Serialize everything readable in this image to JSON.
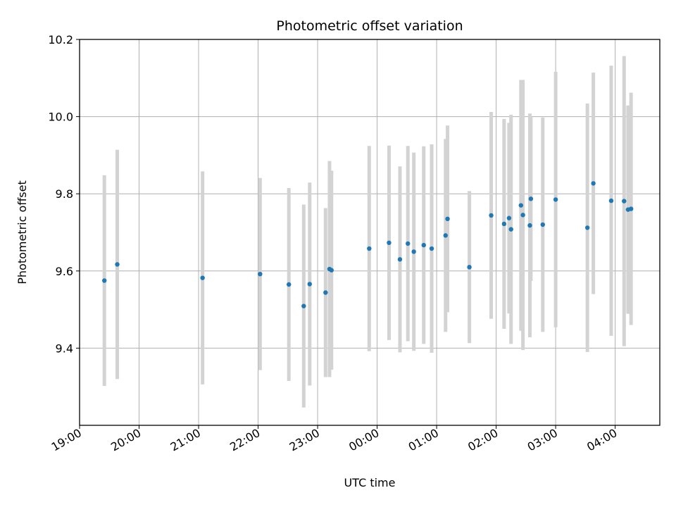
{
  "chart_data": {
    "type": "scatter",
    "title": "Photometric offset variation",
    "xlabel": "UTC time",
    "ylabel": "Photometric offset",
    "x_axis_kind": "time",
    "x_ticks": [
      "19:00",
      "20:00",
      "21:00",
      "22:00",
      "23:00",
      "00:00",
      "01:00",
      "02:00",
      "03:00",
      "04:00"
    ],
    "y_ticks": [
      "9.4",
      "9.6",
      "9.8",
      "10.0",
      "10.2"
    ],
    "x_range": [
      "19:00",
      "04:45"
    ],
    "ylim": [
      9.2,
      10.2
    ],
    "grid": true,
    "marker_color": "#1f77b4",
    "errorbar_color": "#d3d3d3",
    "series": [
      {
        "points": [
          {
            "x": "19:25",
            "y": 9.575,
            "yerr": 0.273
          },
          {
            "x": "19:38",
            "y": 9.617,
            "yerr": 0.297
          },
          {
            "x": "21:04",
            "y": 9.582,
            "yerr": 0.276
          },
          {
            "x": "22:02",
            "y": 9.592,
            "yerr": 0.249
          },
          {
            "x": "22:31",
            "y": 9.565,
            "yerr": 0.25
          },
          {
            "x": "22:46",
            "y": 9.509,
            "yerr": 0.263
          },
          {
            "x": "22:52",
            "y": 9.566,
            "yerr": 0.263
          },
          {
            "x": "23:08",
            "y": 9.544,
            "yerr": 0.219
          },
          {
            "x": "23:12",
            "y": 9.605,
            "yerr": 0.28
          },
          {
            "x": "23:14",
            "y": 9.602,
            "yerr": 0.258
          },
          {
            "x": "23:52",
            "y": 9.658,
            "yerr": 0.266
          },
          {
            "x": "00:12",
            "y": 9.673,
            "yerr": 0.252
          },
          {
            "x": "00:23",
            "y": 9.63,
            "yerr": 0.241
          },
          {
            "x": "00:31",
            "y": 9.671,
            "yerr": 0.253
          },
          {
            "x": "00:37",
            "y": 9.65,
            "yerr": 0.257
          },
          {
            "x": "00:47",
            "y": 9.667,
            "yerr": 0.256
          },
          {
            "x": "00:55",
            "y": 9.658,
            "yerr": 0.27
          },
          {
            "x": "01:09",
            "y": 9.692,
            "yerr": 0.25
          },
          {
            "x": "01:11",
            "y": 9.735,
            "yerr": 0.242
          },
          {
            "x": "01:33",
            "y": 9.61,
            "yerr": 0.197
          },
          {
            "x": "01:55",
            "y": 9.744,
            "yerr": 0.268
          },
          {
            "x": "02:08",
            "y": 9.722,
            "yerr": 0.272
          },
          {
            "x": "02:13",
            "y": 9.737,
            "yerr": 0.247
          },
          {
            "x": "02:15",
            "y": 9.708,
            "yerr": 0.297
          },
          {
            "x": "02:25",
            "y": 9.77,
            "yerr": 0.325
          },
          {
            "x": "02:27",
            "y": 9.745,
            "yerr": 0.35
          },
          {
            "x": "02:34",
            "y": 9.718,
            "yerr": 0.29
          },
          {
            "x": "02:35",
            "y": 9.787,
            "yerr": 0.213
          },
          {
            "x": "02:47",
            "y": 9.72,
            "yerr": 0.278
          },
          {
            "x": "03:00",
            "y": 9.785,
            "yerr": 0.331
          },
          {
            "x": "03:32",
            "y": 9.712,
            "yerr": 0.322
          },
          {
            "x": "03:38",
            "y": 9.827,
            "yerr": 0.287
          },
          {
            "x": "03:56",
            "y": 9.782,
            "yerr": 0.35
          },
          {
            "x": "04:09",
            "y": 9.781,
            "yerr": 0.376
          },
          {
            "x": "04:13",
            "y": 9.759,
            "yerr": 0.27
          },
          {
            "x": "04:16",
            "y": 9.761,
            "yerr": 0.301
          }
        ]
      }
    ]
  }
}
